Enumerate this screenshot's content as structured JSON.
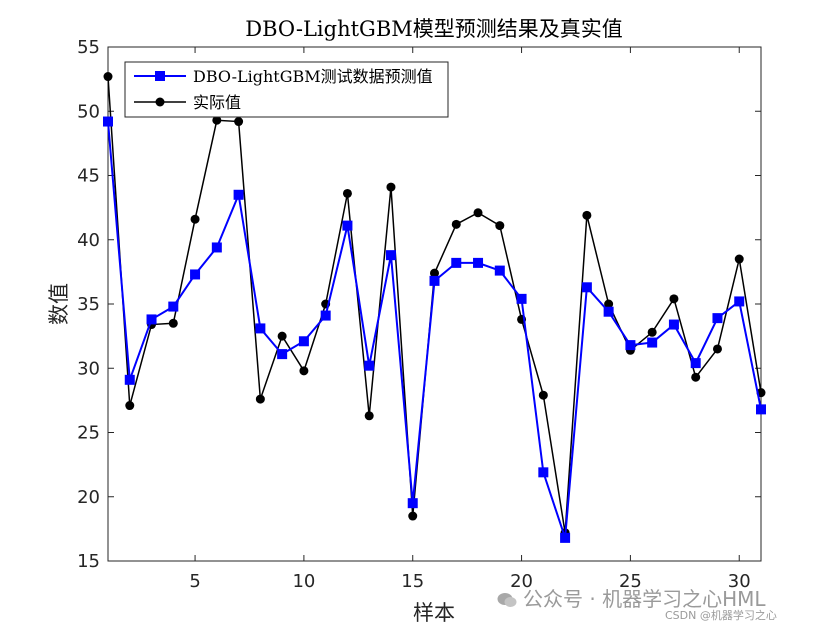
{
  "chart_data": {
    "type": "line",
    "title": "DBO-LightGBM模型预测结果及真实值",
    "xlabel": "样本",
    "ylabel": "数值",
    "xlim": [
      1,
      31
    ],
    "ylim": [
      15,
      55
    ],
    "xticks": [
      5,
      10,
      15,
      20,
      25,
      30
    ],
    "yticks": [
      15,
      20,
      25,
      30,
      35,
      40,
      45,
      50,
      55
    ],
    "grid": false,
    "legend_position": "top-left",
    "x": [
      1,
      2,
      3,
      4,
      5,
      6,
      7,
      8,
      9,
      10,
      11,
      12,
      13,
      14,
      15,
      16,
      17,
      18,
      19,
      20,
      21,
      22,
      23,
      24,
      25,
      26,
      27,
      28,
      29,
      30,
      31
    ],
    "series": [
      {
        "name": "DBO-LightGBM测试数据预测值",
        "color": "#0000ff",
        "marker": "square",
        "values": [
          49.2,
          29.1,
          33.8,
          34.8,
          37.3,
          39.4,
          43.5,
          33.1,
          31.1,
          32.1,
          34.1,
          41.1,
          30.2,
          38.8,
          19.5,
          36.8,
          38.2,
          38.2,
          37.6,
          35.4,
          21.9,
          16.8,
          36.3,
          34.4,
          31.8,
          32.0,
          33.4,
          30.4,
          33.9,
          35.2,
          26.8
        ]
      },
      {
        "name": "实际值",
        "color": "#000000",
        "marker": "circle",
        "values": [
          52.7,
          27.1,
          33.4,
          33.5,
          41.6,
          49.3,
          49.2,
          27.6,
          32.5,
          29.8,
          35.0,
          43.6,
          26.3,
          44.1,
          18.5,
          37.4,
          41.2,
          42.1,
          41.1,
          33.8,
          27.9,
          17.2,
          41.9,
          35.0,
          31.4,
          32.8,
          35.4,
          29.3,
          31.5,
          38.5,
          28.1
        ]
      }
    ]
  },
  "watermark": {
    "line1": "公众号 · 机器学习之心HML",
    "line2": "CSDN @机器学习之心"
  }
}
